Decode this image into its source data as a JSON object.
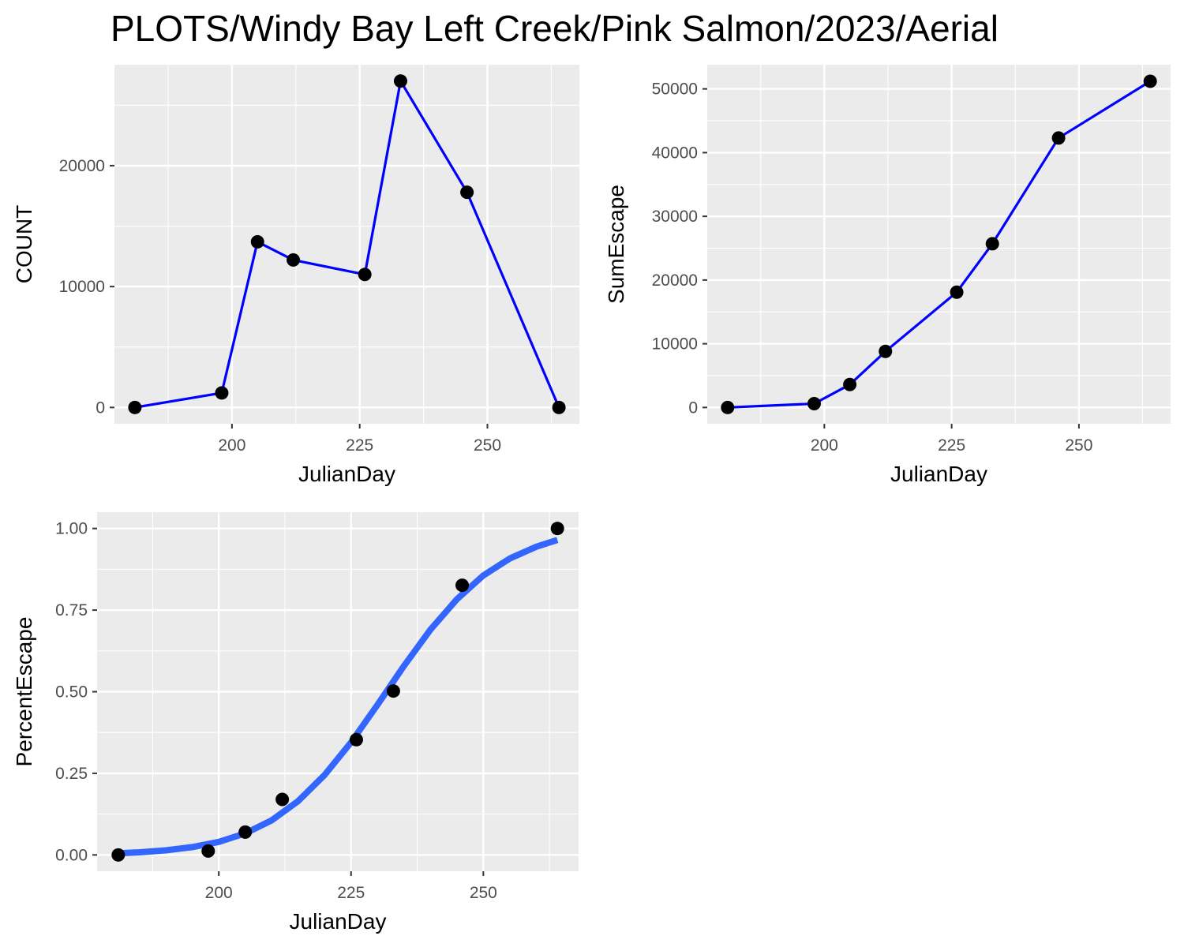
{
  "figure": {
    "title": "PLOTS/Windy Bay Left Creek/Pink Salmon/2023/Aerial"
  },
  "colors": {
    "panel_bg": "#ebebeb",
    "grid": "#ffffff",
    "line": "#0000ff",
    "smooth": "#3366ff",
    "point": "#000000",
    "tick_text": "#4d4d4d",
    "tick_mark": "#333333"
  },
  "chart_data": [
    {
      "id": "count",
      "type": "line",
      "title": "",
      "xlabel": "JulianDay",
      "ylabel": "COUNT",
      "xlim": [
        177,
        268
      ],
      "ylim": [
        -1350,
        28350
      ],
      "xticks": [
        200,
        225,
        250
      ],
      "xtick_labels": [
        "200",
        "225",
        "250"
      ],
      "yticks": [
        0,
        10000,
        20000
      ],
      "ytick_labels": [
        "0",
        "10000",
        "20000"
      ],
      "grid": true,
      "legend": "none",
      "series": [
        {
          "x": [
            181,
            198,
            205,
            212,
            226,
            233,
            246,
            264
          ],
          "y": [
            0,
            1200,
            13700,
            12200,
            11000,
            27000,
            17800,
            0
          ]
        }
      ]
    },
    {
      "id": "sumescape",
      "type": "line",
      "title": "",
      "xlabel": "JulianDay",
      "ylabel": "SumEscape",
      "xlim": [
        177,
        268
      ],
      "ylim": [
        -2560,
        53800
      ],
      "xticks": [
        200,
        225,
        250
      ],
      "xtick_labels": [
        "200",
        "225",
        "250"
      ],
      "yticks": [
        0,
        10000,
        20000,
        30000,
        40000,
        50000
      ],
      "ytick_labels": [
        "0",
        "10000",
        "20000",
        "30000",
        "40000",
        "50000"
      ],
      "grid": true,
      "legend": "none",
      "series": [
        {
          "x": [
            181,
            198,
            205,
            212,
            226,
            233,
            246,
            264
          ],
          "y": [
            0,
            600,
            3600,
            8800,
            18100,
            25700,
            42300,
            51200
          ]
        }
      ]
    },
    {
      "id": "percentescape",
      "type": "scatter",
      "title": "",
      "xlabel": "JulianDay",
      "ylabel": "PercentEscape",
      "xlim": [
        177,
        268
      ],
      "ylim": [
        -0.05,
        1.05
      ],
      "xticks": [
        200,
        225,
        250
      ],
      "xtick_labels": [
        "200",
        "225",
        "250"
      ],
      "yticks": [
        0,
        0.25,
        0.5,
        0.75,
        1.0
      ],
      "ytick_labels": [
        "0.00",
        "0.25",
        "0.50",
        "0.75",
        "1.00"
      ],
      "grid": true,
      "legend": "none",
      "series": [
        {
          "x": [
            181,
            198,
            205,
            212,
            226,
            233,
            246,
            264
          ],
          "y": [
            0,
            0.012,
            0.07,
            0.17,
            0.353,
            0.502,
            0.826,
            1.0
          ]
        }
      ],
      "fitted_curve": {
        "x": [
          181,
          185,
          190,
          195,
          200,
          205,
          210,
          215,
          220,
          225,
          230,
          235,
          240,
          245,
          250,
          255,
          260,
          264
        ],
        "y": [
          0.005,
          0.008,
          0.014,
          0.024,
          0.04,
          0.066,
          0.106,
          0.165,
          0.245,
          0.345,
          0.46,
          0.579,
          0.69,
          0.783,
          0.856,
          0.908,
          0.944,
          0.965
        ]
      }
    }
  ]
}
